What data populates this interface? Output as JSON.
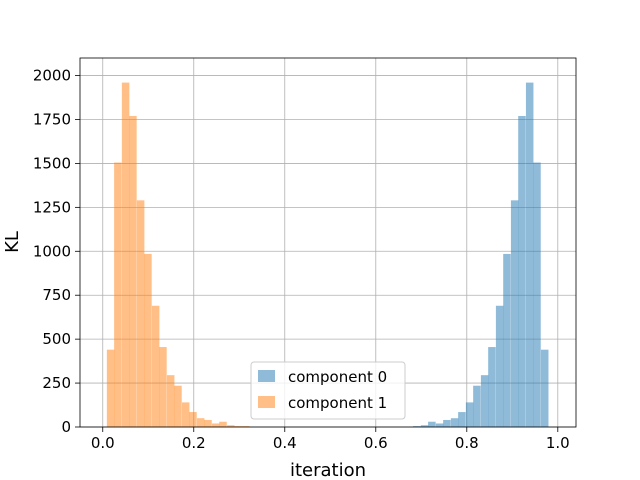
{
  "chart_data": {
    "type": "histogram",
    "title": "",
    "xlabel": "iteration",
    "ylabel": "KL",
    "xlim": [
      -0.05,
      1.04
    ],
    "ylim": [
      0,
      2100
    ],
    "xticks": [
      0.0,
      0.2,
      0.4,
      0.6,
      0.8,
      1.0
    ],
    "xtick_labels": [
      "0.0",
      "0.2",
      "0.4",
      "0.6",
      "0.8",
      "1.0"
    ],
    "yticks": [
      0,
      250,
      500,
      750,
      1000,
      1250,
      1500,
      1750,
      2000
    ],
    "ytick_labels": [
      "0",
      "250",
      "500",
      "750",
      "1000",
      "1250",
      "1500",
      "1750",
      "2000"
    ],
    "grid": true,
    "legend_position": "bottom-center",
    "bin_width": 0.0165,
    "series": [
      {
        "name": "component 0",
        "color": "#1f77b4",
        "alpha": 0.5,
        "bins_start": [
          0.682,
          0.699,
          0.715,
          0.732,
          0.748,
          0.765,
          0.781,
          0.798,
          0.814,
          0.831,
          0.847,
          0.864,
          0.88,
          0.897,
          0.913,
          0.93,
          0.946,
          0.963,
          0.979
        ],
        "counts": [
          5,
          10,
          30,
          20,
          40,
          50,
          85,
          140,
          235,
          295,
          455,
          690,
          985,
          1290,
          1770,
          1960,
          1505,
          440,
          0
        ]
      },
      {
        "name": "component 1",
        "color": "#ff7f0e",
        "alpha": 0.5,
        "bins_start": [
          0.009,
          0.025,
          0.042,
          0.058,
          0.075,
          0.091,
          0.108,
          0.124,
          0.141,
          0.157,
          0.174,
          0.19,
          0.207,
          0.223,
          0.24,
          0.256,
          0.273,
          0.289,
          0.306
        ],
        "counts": [
          440,
          1505,
          1960,
          1770,
          1290,
          985,
          690,
          455,
          295,
          235,
          140,
          85,
          50,
          40,
          20,
          30,
          10,
          5,
          5
        ]
      }
    ]
  }
}
